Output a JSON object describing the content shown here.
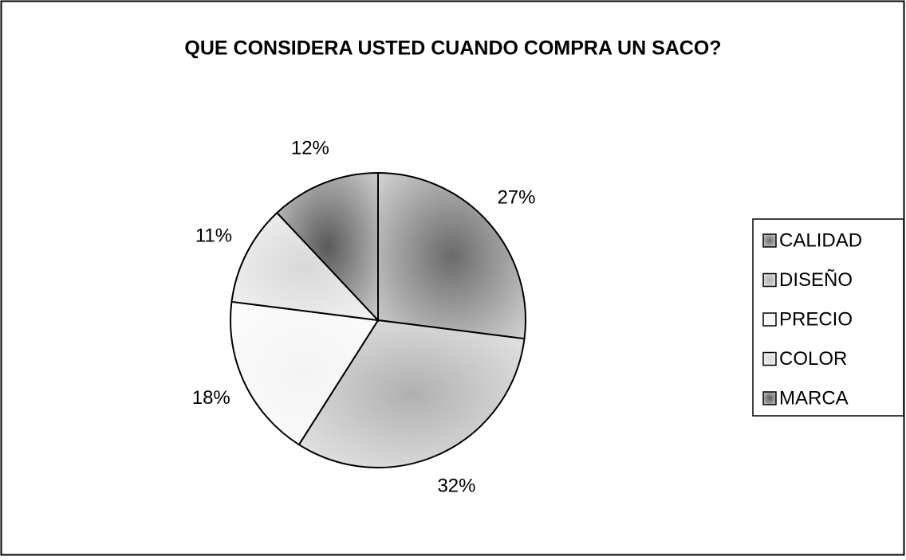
{
  "chart_data": {
    "type": "pie",
    "title": "QUE CONSIDERA USTED CUANDO COMPRA UN SACO?",
    "categories": [
      "CALIDAD",
      "DISEÑO",
      "PRECIO",
      "COLOR",
      "MARCA"
    ],
    "values": [
      27,
      32,
      18,
      11,
      12
    ],
    "value_labels": [
      "27%",
      "32%",
      "18%",
      "11%",
      "12%"
    ],
    "colors": [
      "#6a6a6a",
      "#b0b0b0",
      "#f4f4f4",
      "#d8d8d8",
      "#5a5a5a"
    ],
    "legend": "right"
  }
}
